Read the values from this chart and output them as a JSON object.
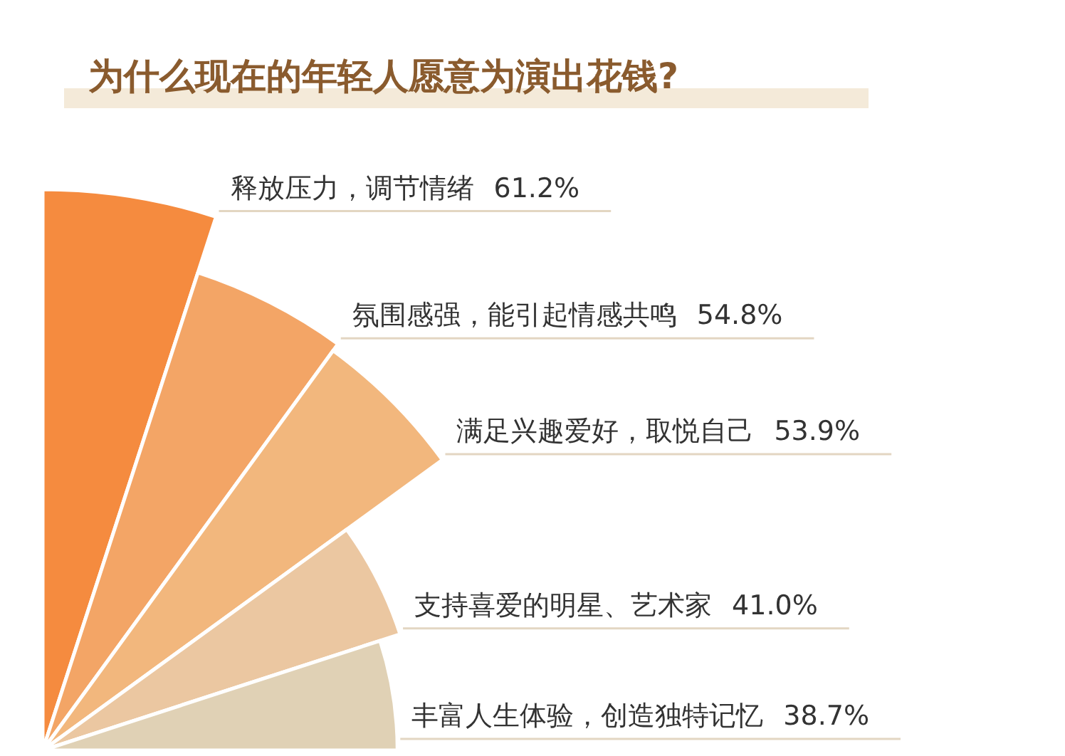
{
  "chart_data": {
    "type": "other",
    "title": "为什么现在的年轻人愿意为演出花钱?",
    "categories": [
      "释放压力，调节情绪",
      "氛围感强，能引起情感共鸣",
      "满足兴趣爱好，取悦自己",
      "支持喜爱的明星、艺术家",
      "丰富人生体验，创造独特记忆"
    ],
    "values": [
      61.2,
      54.8,
      53.9,
      41.0,
      38.7
    ],
    "value_labels": [
      "61.2%",
      "54.8%",
      "53.9%",
      "41.0%",
      "38.7%"
    ],
    "colors": [
      "#f58b3f",
      "#f3a566",
      "#f2b77d",
      "#ebc7a1",
      "#e0d1b5"
    ]
  }
}
